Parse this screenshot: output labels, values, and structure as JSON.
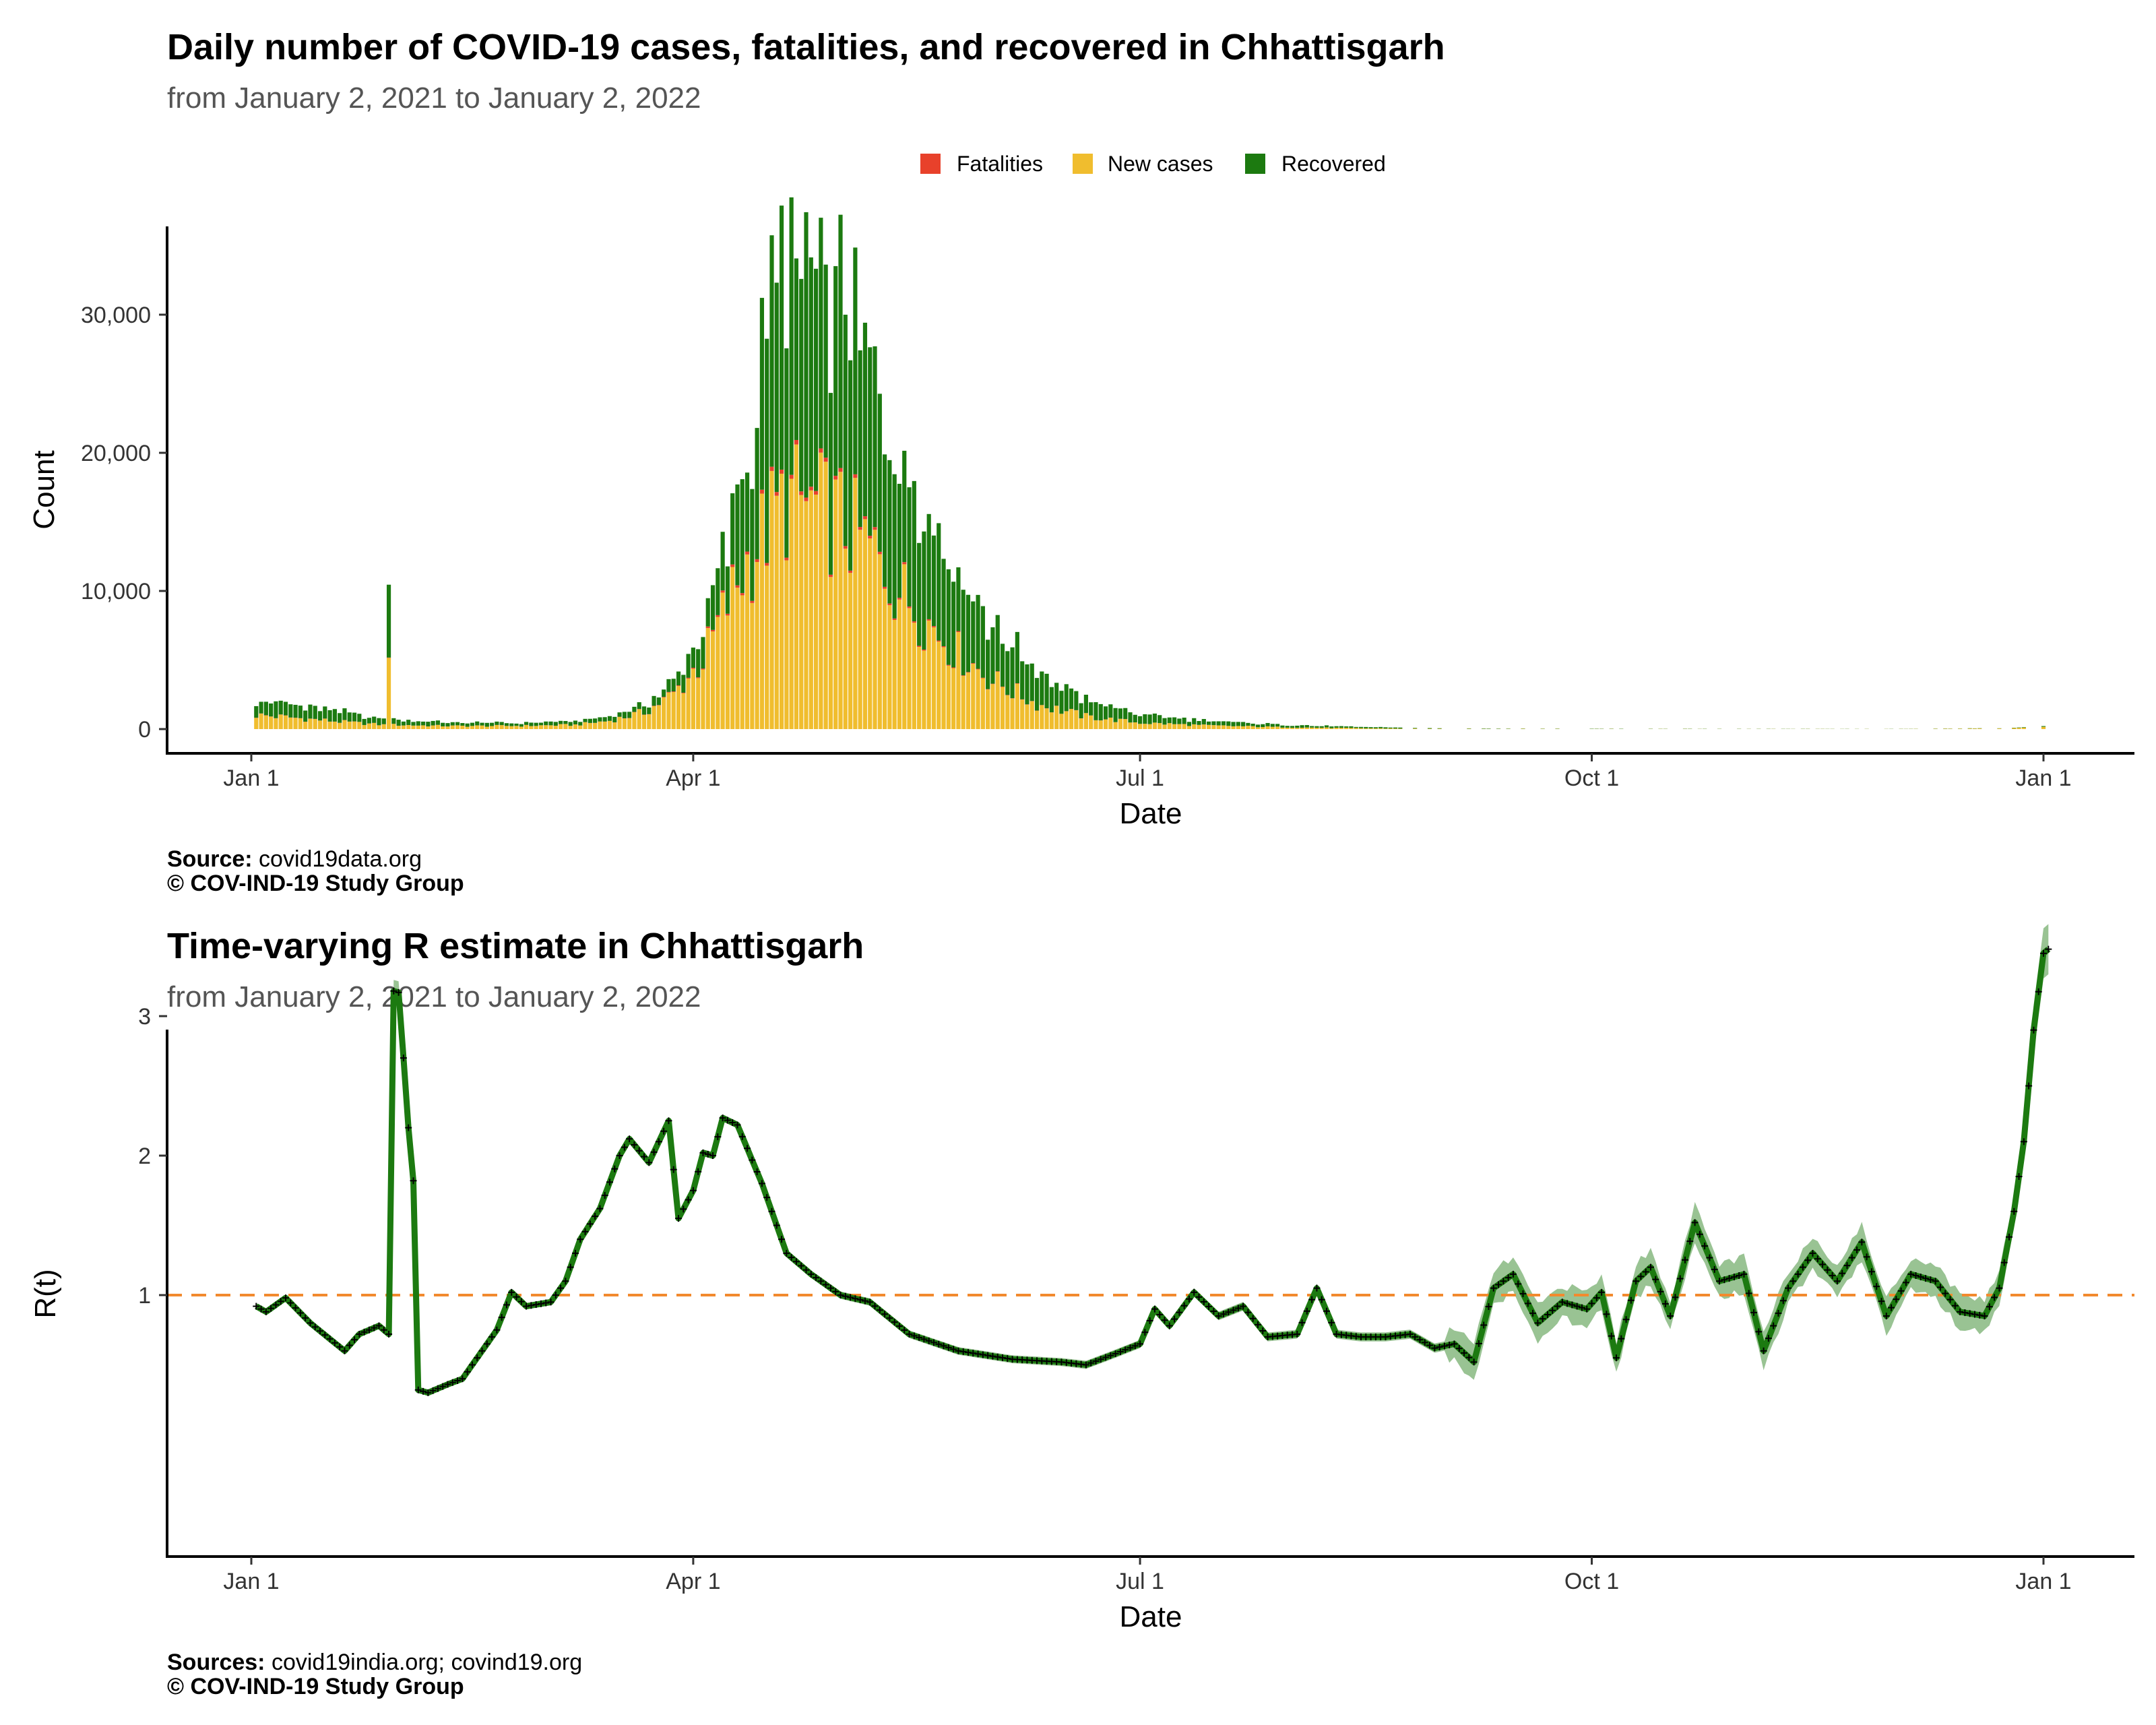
{
  "panel_top": {
    "title": "Daily number of COVID-19 cases, fatalities, and recovered in Chhattisgarh",
    "subtitle": "from January  2, 2021 to January  2, 2022",
    "legend": [
      {
        "label": "Fatalities",
        "color": "#e8412b"
      },
      {
        "label": "New cases",
        "color": "#f0bd2e"
      },
      {
        "label": "Recovered",
        "color": "#1c7a10"
      }
    ],
    "ylabel": "Count",
    "xlabel": "Date",
    "xticks": [
      "Jan  1",
      "Apr  1",
      "Jul  1",
      "Oct  1",
      "Jan  1"
    ],
    "yticks": [
      "0",
      "10,000",
      "20,000",
      "30,000"
    ],
    "source_label": "Source:",
    "source_text": " covid19data.org",
    "copyright": "© COV-IND-19 Study Group"
  },
  "panel_bottom": {
    "title": "Time-varying R estimate in Chhattisgarh",
    "subtitle": "from January  2, 2021 to January  2, 2022",
    "ylabel": "R(t)",
    "xlabel": "Date",
    "xticks": [
      "Jan  1",
      "Apr  1",
      "Jul  1",
      "Oct  1",
      "Jan  1"
    ],
    "yticks": [
      "1",
      "2",
      "3"
    ],
    "source_label": "Sources:",
    "source_text": " covid19india.org; covind19.org",
    "copyright": "© COV-IND-19 Study Group"
  },
  "chart_data": [
    {
      "type": "bar",
      "stacked": true,
      "x_start": "2021-01-02",
      "x_end": "2022-01-02",
      "ylim": [
        -1700,
        36500
      ],
      "xtick_dates": [
        "2021-01-01",
        "2021-04-01",
        "2021-07-01",
        "2021-10-01",
        "2022-01-01"
      ],
      "ytick_values": [
        0,
        10000,
        20000,
        30000
      ],
      "grid": false,
      "legend_position": "top",
      "series_order": [
        "fatalities",
        "new_cases",
        "recovered"
      ],
      "daily_anchors": {
        "dates": [
          "2021-01-02",
          "2021-01-10",
          "2021-01-20",
          "2021-01-28",
          "2021-01-29",
          "2021-01-30",
          "2021-02-10",
          "2021-02-25",
          "2021-03-08",
          "2021-03-15",
          "2021-03-22",
          "2021-03-28",
          "2021-04-03",
          "2021-04-08",
          "2021-04-12",
          "2021-04-16",
          "2021-04-20",
          "2021-04-25",
          "2021-05-01",
          "2021-05-07",
          "2021-05-12",
          "2021-05-18",
          "2021-05-25",
          "2021-06-01",
          "2021-06-10",
          "2021-06-20",
          "2021-07-01",
          "2021-07-15",
          "2021-08-01",
          "2021-08-15",
          "2021-09-01",
          "2021-10-01",
          "2021-11-01",
          "2021-12-01",
          "2021-12-25",
          "2022-01-02"
        ],
        "new_cases": [
          1000,
          800,
          500,
          300,
          6500,
          300,
          220,
          230,
          300,
          600,
          1200,
          2500,
          5000,
          9000,
          12000,
          14500,
          16500,
          16000,
          15000,
          13000,
          10500,
          8000,
          5500,
          3500,
          1800,
          900,
          450,
          250,
          120,
          60,
          20,
          15,
          10,
          8,
          50,
          250
        ],
        "recovered": [
          1100,
          900,
          700,
          400,
          6400,
          400,
          250,
          200,
          250,
          300,
          500,
          800,
          2000,
          4500,
          7500,
          13000,
          16500,
          18000,
          16000,
          13000,
          11000,
          8500,
          6000,
          4000,
          2300,
          1200,
          600,
          320,
          160,
          90,
          30,
          15,
          10,
          8,
          20,
          50
        ],
        "fatalities": [
          15,
          12,
          8,
          5,
          30,
          5,
          4,
          4,
          5,
          8,
          15,
          40,
          80,
          140,
          200,
          240,
          260,
          250,
          220,
          180,
          140,
          100,
          60,
          30,
          15,
          8,
          4,
          3,
          2,
          1,
          0,
          0,
          0,
          0,
          0,
          0
        ]
      }
    },
    {
      "type": "line",
      "x_start": "2021-01-02",
      "x_end": "2022-01-02",
      "ylim": [
        0.12,
        3.85
      ],
      "reference_line": 1,
      "xtick_dates": [
        "2021-01-01",
        "2021-04-01",
        "2021-07-01",
        "2021-10-01",
        "2022-01-01"
      ],
      "ytick_values": [
        1,
        2,
        3
      ],
      "grid": false,
      "series": [
        {
          "name": "",
          "dates": [
            "2021-01-02",
            "2021-01-04",
            "2021-01-08",
            "2021-01-13",
            "2021-01-20",
            "2021-01-23",
            "2021-01-27",
            "2021-01-29",
            "2021-01-30",
            "2021-01-31",
            "2021-02-01",
            "2021-02-02",
            "2021-02-03",
            "2021-02-04",
            "2021-02-06",
            "2021-02-10",
            "2021-02-13",
            "2021-02-16",
            "2021-02-20",
            "2021-02-23",
            "2021-02-26",
            "2021-03-03",
            "2021-03-06",
            "2021-03-09",
            "2021-03-13",
            "2021-03-17",
            "2021-03-19",
            "2021-03-23",
            "2021-03-25",
            "2021-03-27",
            "2021-03-29",
            "2021-04-01",
            "2021-04-03",
            "2021-04-05",
            "2021-04-07",
            "2021-04-10",
            "2021-04-15",
            "2021-04-20",
            "2021-04-25",
            "2021-05-01",
            "2021-05-07",
            "2021-05-15",
            "2021-05-25",
            "2021-06-05",
            "2021-06-15",
            "2021-06-20",
            "2021-06-26",
            "2021-07-01",
            "2021-07-04",
            "2021-07-07",
            "2021-07-12",
            "2021-07-17",
            "2021-07-22",
            "2021-07-27",
            "2021-08-02",
            "2021-08-06",
            "2021-08-10",
            "2021-08-15",
            "2021-08-20",
            "2021-08-25",
            "2021-08-30",
            "2021-09-03",
            "2021-09-07",
            "2021-09-11",
            "2021-09-15",
            "2021-09-20",
            "2021-09-25",
            "2021-09-30",
            "2021-10-03",
            "2021-10-06",
            "2021-10-10",
            "2021-10-13",
            "2021-10-17",
            "2021-10-22",
            "2021-10-27",
            "2021-11-01",
            "2021-11-05",
            "2021-11-10",
            "2021-11-15",
            "2021-11-20",
            "2021-11-25",
            "2021-11-30",
            "2021-12-05",
            "2021-12-10",
            "2021-12-15",
            "2021-12-20",
            "2021-12-23",
            "2021-12-26",
            "2021-12-28",
            "2021-12-30",
            "2022-01-01",
            "2022-01-02"
          ],
          "values": [
            0.92,
            0.88,
            0.98,
            0.8,
            0.6,
            0.72,
            0.78,
            0.72,
            3.18,
            3.17,
            2.7,
            2.2,
            1.82,
            0.32,
            0.3,
            0.36,
            0.4,
            0.55,
            0.75,
            1.02,
            0.92,
            0.95,
            1.1,
            1.4,
            1.62,
            2.0,
            2.12,
            1.95,
            2.1,
            2.25,
            1.55,
            1.75,
            2.02,
            2.0,
            2.27,
            2.22,
            1.8,
            1.3,
            1.15,
            1.0,
            0.95,
            0.72,
            0.6,
            0.54,
            0.52,
            0.5,
            0.58,
            0.65,
            0.9,
            0.78,
            1.02,
            0.85,
            0.92,
            0.7,
            0.72,
            1.05,
            0.72,
            0.7,
            0.7,
            0.72,
            0.62,
            0.65,
            0.52,
            1.05,
            1.15,
            0.8,
            0.95,
            0.9,
            1.02,
            0.55,
            1.1,
            1.2,
            0.85,
            1.52,
            1.1,
            1.15,
            0.6,
            1.05,
            1.3,
            1.1,
            1.38,
            0.85,
            1.15,
            1.1,
            0.88,
            0.85,
            1.05,
            1.6,
            2.1,
            2.9,
            3.45,
            3.48
          ]
        }
      ]
    }
  ]
}
